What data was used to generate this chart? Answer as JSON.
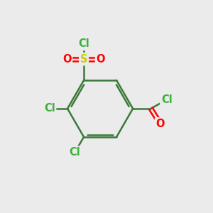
{
  "background_color": "#ebebeb",
  "bond_color": "#3a7a3a",
  "atom_colors": {
    "Cl": "#3ab03a",
    "S": "#cccc00",
    "O": "#ff0000",
    "C": "#3a7a3a"
  },
  "figsize": [
    3.0,
    3.0
  ],
  "dpi": 100
}
